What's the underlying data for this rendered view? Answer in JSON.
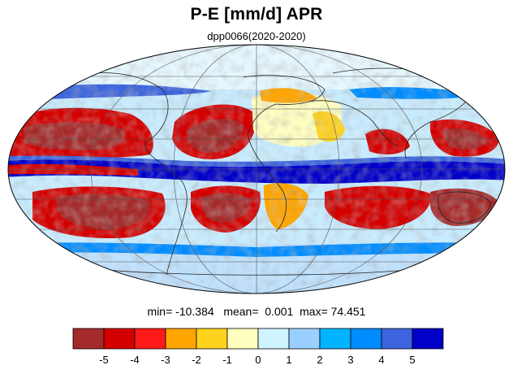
{
  "title": "P-E [mm/d] APR",
  "subtitle": "dpp0066(2020-2020)",
  "stats": {
    "min_label": "min=",
    "min_value": "-10.384",
    "mean_label": "mean=",
    "mean_value": "0.001",
    "max_label": "max=",
    "max_value": "74.451"
  },
  "colorbar": {
    "colors": [
      "#a52a2a",
      "#d40000",
      "#ff1a1a",
      "#ffa500",
      "#ffd21e",
      "#ffffc0",
      "#d0f4ff",
      "#9ad0ff",
      "#00b4ff",
      "#008cff",
      "#3c64dc",
      "#0000c8"
    ],
    "tick_labels": [
      "-5",
      "-4",
      "-3",
      "-2",
      "-1",
      "0",
      "1",
      "2",
      "3",
      "4",
      "5"
    ]
  },
  "map": {
    "projection": "Mollweide",
    "variable": "P-E",
    "units": "mm/d",
    "features": [
      "coastlines",
      "graticule"
    ]
  }
}
